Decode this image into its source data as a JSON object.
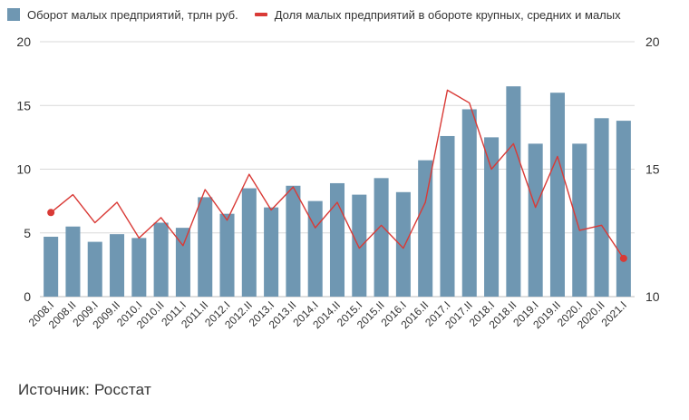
{
  "legend": {
    "bar_label": "Оборот малых предприятий, трлн руб.",
    "line_label": "Доля малых предприятий в обороте крупных, средних и малых"
  },
  "source": "Источник: Росстат",
  "colors": {
    "bar": "#6f97b2",
    "line": "#d93a36",
    "grid": "#d9d9d9",
    "axis": "#333333"
  },
  "chart_data": {
    "type": "bar+line",
    "categories": [
      "2008.I",
      "2008.II",
      "2009.I",
      "2009.II",
      "2010.I",
      "2010.II",
      "2011.I",
      "2011.II",
      "2012.I",
      "2012.II",
      "2013.I",
      "2013.II",
      "2014.I",
      "2014.II",
      "2015.I",
      "2015.II",
      "2016.I",
      "2016.II",
      "2017.I",
      "2017.II",
      "2018.I",
      "2018.II",
      "2019.I",
      "2019.II",
      "2020.I",
      "2020.II",
      "2021.I"
    ],
    "series": [
      {
        "name": "Оборот малых предприятий, трлн руб.",
        "type": "bar",
        "axis": "left",
        "values": [
          4.7,
          5.5,
          4.3,
          4.9,
          4.6,
          5.8,
          5.4,
          7.8,
          6.5,
          8.5,
          7.0,
          8.7,
          7.5,
          8.9,
          8.0,
          9.3,
          8.2,
          10.7,
          12.6,
          14.7,
          12.5,
          16.5,
          12.0,
          16.0,
          12.0,
          14.0,
          13.8
        ]
      },
      {
        "name": "Доля малых предприятий в обороте крупных, средних и малых",
        "type": "line",
        "axis": "right",
        "values": [
          13.3,
          14.0,
          12.9,
          13.7,
          12.3,
          13.1,
          12.0,
          14.2,
          13.0,
          14.8,
          13.4,
          14.3,
          12.7,
          13.7,
          11.9,
          12.8,
          11.9,
          13.7,
          18.1,
          17.6,
          15.0,
          16.0,
          13.5,
          15.5,
          12.6,
          12.8,
          11.5
        ],
        "markers": [
          0,
          26
        ]
      }
    ],
    "y_left": {
      "min": 0,
      "max": 20,
      "ticks": [
        "0",
        "5",
        "10",
        "15",
        "20"
      ]
    },
    "y_right": {
      "min": 10,
      "max": 20,
      "ticks": [
        "10",
        "15",
        "20"
      ]
    },
    "grid": true,
    "legend_position": "top-left"
  }
}
